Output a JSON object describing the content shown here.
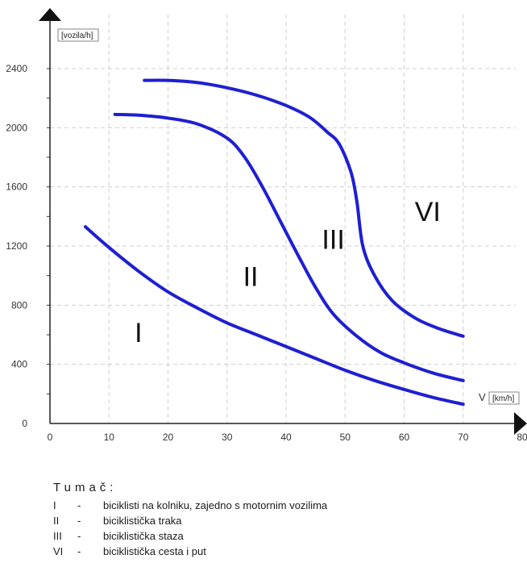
{
  "chart_data": {
    "type": "line",
    "xlim": [
      0,
      80
    ],
    "ylim": [
      0,
      2400
    ],
    "x_ticks": [
      "0",
      "10",
      "20",
      "30",
      "40",
      "50",
      "60",
      "70",
      "80"
    ],
    "y_ticks": [
      "0",
      "400",
      "800",
      "1200",
      "1600",
      "2000",
      "2400"
    ],
    "y_unit": "[vozila/h]",
    "x_label": "V",
    "x_unit": "[km/h]",
    "grid": true,
    "line_color": "#1f1fd1",
    "series": [
      {
        "points": [
          [
            6,
            1330
          ],
          [
            10,
            1190
          ],
          [
            15,
            1030
          ],
          [
            20,
            890
          ],
          [
            25,
            780
          ],
          [
            30,
            680
          ],
          [
            35,
            600
          ],
          [
            40,
            520
          ],
          [
            45,
            440
          ],
          [
            50,
            360
          ],
          [
            55,
            290
          ],
          [
            60,
            230
          ],
          [
            65,
            175
          ],
          [
            70,
            130
          ]
        ]
      },
      {
        "points": [
          [
            11,
            2090
          ],
          [
            15,
            2085
          ],
          [
            20,
            2065
          ],
          [
            25,
            2025
          ],
          [
            30,
            1930
          ],
          [
            33,
            1800
          ],
          [
            36,
            1600
          ],
          [
            39,
            1370
          ],
          [
            42,
            1140
          ],
          [
            45,
            920
          ],
          [
            48,
            740
          ],
          [
            52,
            590
          ],
          [
            56,
            480
          ],
          [
            60,
            410
          ],
          [
            65,
            340
          ],
          [
            70,
            290
          ]
        ]
      },
      {
        "points": [
          [
            16,
            2320
          ],
          [
            20,
            2320
          ],
          [
            25,
            2305
          ],
          [
            30,
            2270
          ],
          [
            35,
            2220
          ],
          [
            40,
            2150
          ],
          [
            44,
            2070
          ],
          [
            47,
            1970
          ],
          [
            49,
            1890
          ],
          [
            51,
            1700
          ],
          [
            52,
            1500
          ],
          [
            53,
            1200
          ],
          [
            55,
            1000
          ],
          [
            58,
            830
          ],
          [
            62,
            710
          ],
          [
            66,
            640
          ],
          [
            70,
            590
          ]
        ]
      }
    ],
    "region_labels": [
      {
        "text": "I",
        "x": 15,
        "y": 550
      },
      {
        "text": "II",
        "x": 34,
        "y": 930
      },
      {
        "text": "III",
        "x": 48,
        "y": 1180
      },
      {
        "text": "VI",
        "x": 64,
        "y": 1370
      }
    ]
  },
  "legend": {
    "title": "Tumač:",
    "items": [
      {
        "num": "I",
        "dash": "-",
        "text": "biciklisti na kolniku, zajedno s motornim vozilima"
      },
      {
        "num": "II",
        "dash": "-",
        "text": "biciklistička traka"
      },
      {
        "num": "III",
        "dash": "-",
        "text": "biciklistička staza"
      },
      {
        "num": "VI",
        "dash": "-",
        "text": "biciklistička cesta i put"
      }
    ]
  }
}
